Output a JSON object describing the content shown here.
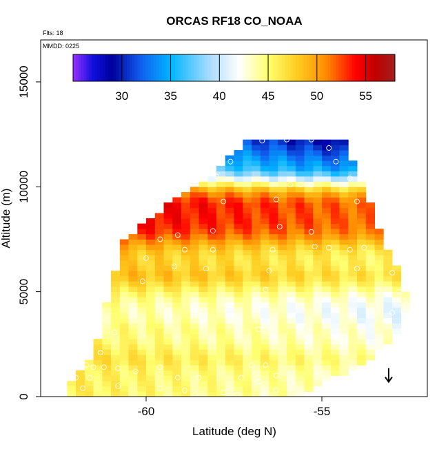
{
  "chart_data": {
    "type": "heatmap",
    "title": "ORCAS RF18 CO_NOAA",
    "annotations": {
      "flights": "Flts: 18",
      "date": "MMDD: 0225"
    },
    "xlabel": "Latitude (deg N)",
    "ylabel": "Altitude (m)",
    "xlim": [
      -63,
      -52
    ],
    "ylim": [
      0,
      17000
    ],
    "xticks": [
      -60,
      -55
    ],
    "yticks": [
      0,
      5000,
      10000,
      15000
    ],
    "colorbar": {
      "ticks": [
        30,
        35,
        40,
        45,
        50,
        55
      ],
      "range": [
        25,
        58
      ],
      "stops": [
        {
          "v": 25,
          "c": "#9b30ff"
        },
        {
          "v": 27,
          "c": "#1010dd"
        },
        {
          "v": 29,
          "c": "#00009b"
        },
        {
          "v": 32,
          "c": "#1060f0"
        },
        {
          "v": 35,
          "c": "#00b4ff"
        },
        {
          "v": 39,
          "c": "#a8dcff"
        },
        {
          "v": 42,
          "c": "#ffffff"
        },
        {
          "v": 45,
          "c": "#ffff70"
        },
        {
          "v": 48,
          "c": "#ffcc20"
        },
        {
          "v": 51,
          "c": "#ff8a00"
        },
        {
          "v": 54,
          "c": "#ff0000"
        },
        {
          "v": 56,
          "c": "#c00000"
        },
        {
          "v": 58,
          "c": "#a02020"
        }
      ]
    },
    "arrow_marker": {
      "latitude": -53.1,
      "altitude": 700
    },
    "profile": [
      {
        "alt": 12250,
        "lat_min": -57.0,
        "lat_max": -54.5
      },
      {
        "alt": 11500,
        "lat_min": -57.5,
        "lat_max": -54.3
      },
      {
        "alt": 10500,
        "lat_min": -58.0,
        "lat_max": -54.1
      },
      {
        "alt": 9500,
        "lat_min": -59.0,
        "lat_max": -53.8
      },
      {
        "alt": 8500,
        "lat_min": -59.8,
        "lat_max": -53.6
      },
      {
        "alt": 7500,
        "lat_min": -60.5,
        "lat_max": -53.4
      },
      {
        "alt": 6500,
        "lat_min": -60.7,
        "lat_max": -53.1
      },
      {
        "alt": 5500,
        "lat_min": -60.8,
        "lat_max": -52.8
      },
      {
        "alt": 4500,
        "lat_min": -61.0,
        "lat_max": -52.7
      },
      {
        "alt": 3500,
        "lat_min": -61.1,
        "lat_max": -52.8
      },
      {
        "alt": 2500,
        "lat_min": -61.3,
        "lat_max": -53.2
      },
      {
        "alt": 1500,
        "lat_min": -61.6,
        "lat_max": -54.0
      },
      {
        "alt": 500,
        "lat_min": -62.2,
        "lat_max": -55.2
      },
      {
        "alt": 0,
        "lat_min": -62.2,
        "lat_max": -55.6
      }
    ],
    "co_by_altitude": [
      {
        "alt": 12250,
        "co": 31
      },
      {
        "alt": 11750,
        "co": 33
      },
      {
        "alt": 11250,
        "co": 35
      },
      {
        "alt": 10750,
        "co": 37
      },
      {
        "alt": 10250,
        "co": 44
      },
      {
        "alt": 9750,
        "co": 51
      },
      {
        "alt": 9250,
        "co": 54
      },
      {
        "alt": 8750,
        "co": 54
      },
      {
        "alt": 8250,
        "co": 54
      },
      {
        "alt": 7750,
        "co": 53
      },
      {
        "alt": 7250,
        "co": 50
      },
      {
        "alt": 6750,
        "co": 48
      },
      {
        "alt": 6250,
        "co": 48
      },
      {
        "alt": 5750,
        "co": 49
      },
      {
        "alt": 5250,
        "co": 47
      },
      {
        "alt": 4750,
        "co": 45
      },
      {
        "alt": 4250,
        "co": 44
      },
      {
        "alt": 3750,
        "co": 44
      },
      {
        "alt": 3250,
        "co": 45
      },
      {
        "alt": 2750,
        "co": 45
      },
      {
        "alt": 2250,
        "co": 46
      },
      {
        "alt": 1750,
        "co": 47
      },
      {
        "alt": 1250,
        "co": 46
      },
      {
        "alt": 750,
        "co": 46
      },
      {
        "alt": 250,
        "co": 46
      }
    ],
    "observations": [
      {
        "lat": -57.4,
        "alt": 12080
      },
      {
        "lat": -56.7,
        "alt": 12200
      },
      {
        "lat": -56.0,
        "alt": 12250
      },
      {
        "lat": -55.3,
        "alt": 12250
      },
      {
        "lat": -54.8,
        "alt": 11850
      },
      {
        "lat": -54.6,
        "alt": 11200
      },
      {
        "lat": -57.6,
        "alt": 11200
      },
      {
        "lat": -58.0,
        "alt": 10500
      },
      {
        "lat": -54.2,
        "alt": 10400
      },
      {
        "lat": -55.9,
        "alt": 10100
      },
      {
        "lat": -55.6,
        "alt": 10100
      },
      {
        "lat": -55.3,
        "alt": 10100
      },
      {
        "lat": -57.8,
        "alt": 9300
      },
      {
        "lat": -56.3,
        "alt": 9400
      },
      {
        "lat": -54.0,
        "alt": 9300
      },
      {
        "lat": -56.2,
        "alt": 8100
      },
      {
        "lat": -58.1,
        "alt": 7900
      },
      {
        "lat": -55.3,
        "alt": 7850
      },
      {
        "lat": -59.1,
        "alt": 7700
      },
      {
        "lat": -59.6,
        "alt": 7500
      },
      {
        "lat": -55.2,
        "alt": 7150
      },
      {
        "lat": -54.8,
        "alt": 7100
      },
      {
        "lat": -53.8,
        "alt": 7100
      },
      {
        "lat": -54.2,
        "alt": 7000
      },
      {
        "lat": -56.4,
        "alt": 7000
      },
      {
        "lat": -58.9,
        "alt": 7000
      },
      {
        "lat": -58.1,
        "alt": 7000
      },
      {
        "lat": -60.0,
        "alt": 6600
      },
      {
        "lat": -59.2,
        "alt": 6200
      },
      {
        "lat": -58.3,
        "alt": 6100
      },
      {
        "lat": -56.5,
        "alt": 6000
      },
      {
        "lat": -54.0,
        "alt": 6100
      },
      {
        "lat": -53.0,
        "alt": 5900
      },
      {
        "lat": -60.1,
        "alt": 5500
      },
      {
        "lat": -56.6,
        "alt": 5100
      },
      {
        "lat": -53.4,
        "alt": 5050
      },
      {
        "lat": -52.8,
        "alt": 5000
      },
      {
        "lat": -52.6,
        "alt": 4400
      },
      {
        "lat": -53.0,
        "alt": 4000
      },
      {
        "lat": -56.8,
        "alt": 3200
      },
      {
        "lat": -60.9,
        "alt": 3050
      },
      {
        "lat": -61.3,
        "alt": 2100
      },
      {
        "lat": -61.7,
        "alt": 1500
      },
      {
        "lat": -61.5,
        "alt": 1400
      },
      {
        "lat": -61.2,
        "alt": 1400
      },
      {
        "lat": -60.8,
        "alt": 1350
      },
      {
        "lat": -59.6,
        "alt": 1400
      },
      {
        "lat": -57.0,
        "alt": 1500
      },
      {
        "lat": -56.6,
        "alt": 1500
      },
      {
        "lat": -60.3,
        "alt": 1200
      },
      {
        "lat": -61.6,
        "alt": 900
      },
      {
        "lat": -62.0,
        "alt": 900
      },
      {
        "lat": -59.1,
        "alt": 900
      },
      {
        "lat": -58.5,
        "alt": 900
      },
      {
        "lat": -57.3,
        "alt": 900
      },
      {
        "lat": -56.3,
        "alt": 1000
      },
      {
        "lat": -56.8,
        "alt": 700
      },
      {
        "lat": -61.8,
        "alt": 400
      },
      {
        "lat": -60.8,
        "alt": 500
      },
      {
        "lat": -59.6,
        "alt": 400
      },
      {
        "lat": -58.9,
        "alt": 300
      },
      {
        "lat": -57.8,
        "alt": 200
      },
      {
        "lat": -57.4,
        "alt": 100
      },
      {
        "lat": -56.7,
        "alt": 100
      },
      {
        "lat": -58.6,
        "alt": 100
      },
      {
        "lat": -56.3,
        "alt": 300
      }
    ]
  }
}
